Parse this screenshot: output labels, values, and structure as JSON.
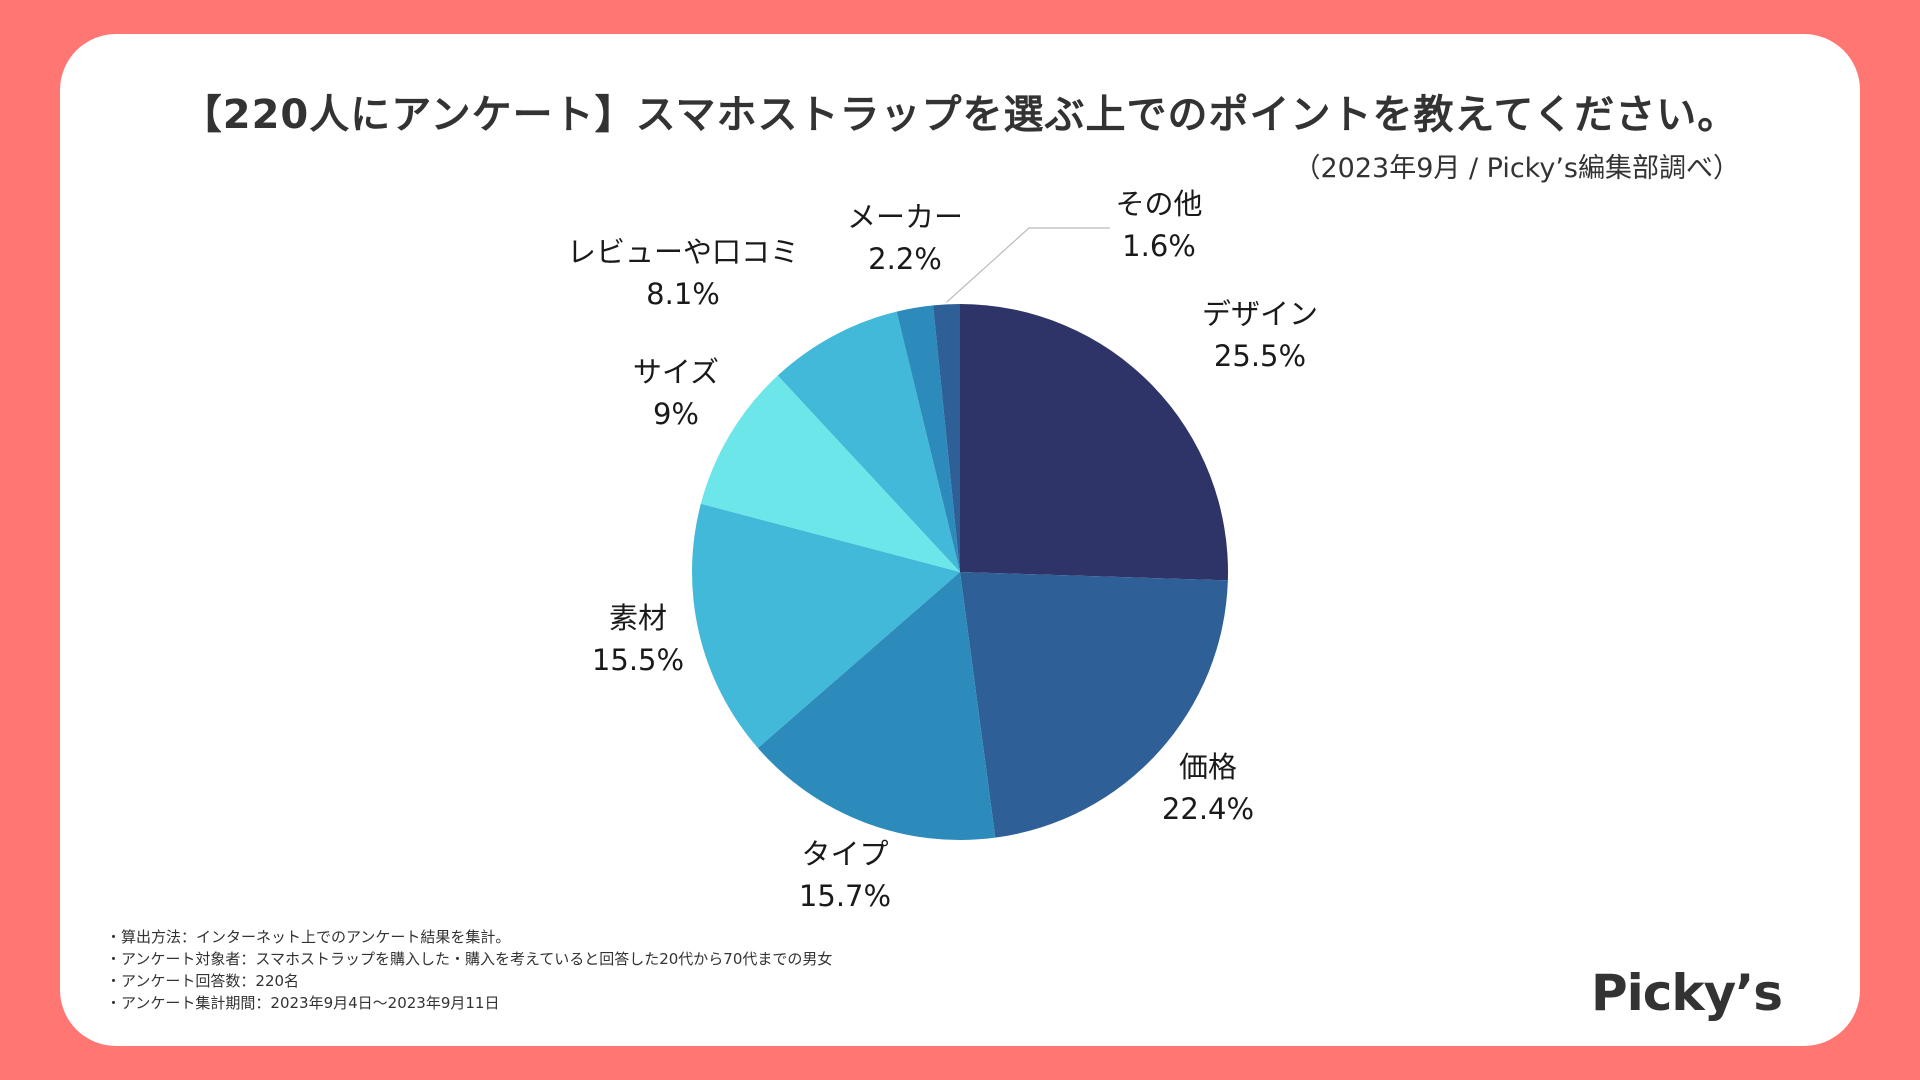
{
  "title": "【220人にアンケート】スマホストラップを選ぶ上でのポイントを教えてください。",
  "subtitle": "（2023年9月 / Picky’s編集部調べ）",
  "notes": [
    "・算出方法：インターネット上でのアンケート結果を集計。",
    "・アンケート対象者：スマホストラップを購入した・購入を考えていると回答した20代から70代までの男女",
    "・アンケート回答数：220名",
    "・アンケート集計期間：2023年9月4日〜2023年9月11日"
  ],
  "logo": "Picky’s",
  "colors": {
    "background": "#ff7673",
    "card": "#ffffff"
  },
  "chart_data": {
    "type": "pie",
    "title": "【220人にアンケート】スマホストラップを選ぶ上でのポイントを教えてください。",
    "start": "12 o'clock, clockwise",
    "slices": [
      {
        "label": "デザイン",
        "value": 25.5,
        "value_label": "25.5%",
        "color": "#2f3468"
      },
      {
        "label": "価格",
        "value": 22.4,
        "value_label": "22.4%",
        "color": "#2e5f97"
      },
      {
        "label": "タイプ",
        "value": 15.7,
        "value_label": "15.7%",
        "color": "#2d8bbb"
      },
      {
        "label": "素材",
        "value": 15.5,
        "value_label": "15.5%",
        "color": "#42b9d8"
      },
      {
        "label": "サイズ",
        "value": 9,
        "value_label": "9%",
        "color": "#6ce6e9"
      },
      {
        "label": "レビューや口コミ",
        "value": 8.1,
        "value_label": "8.1%",
        "color": "#42b9d8"
      },
      {
        "label": "メーカー",
        "value": 2.2,
        "value_label": "2.2%",
        "color": "#2d8bbb"
      },
      {
        "label": "その他",
        "value": 1.6,
        "value_label": "1.6%",
        "color": "#2e5f97"
      }
    ]
  }
}
